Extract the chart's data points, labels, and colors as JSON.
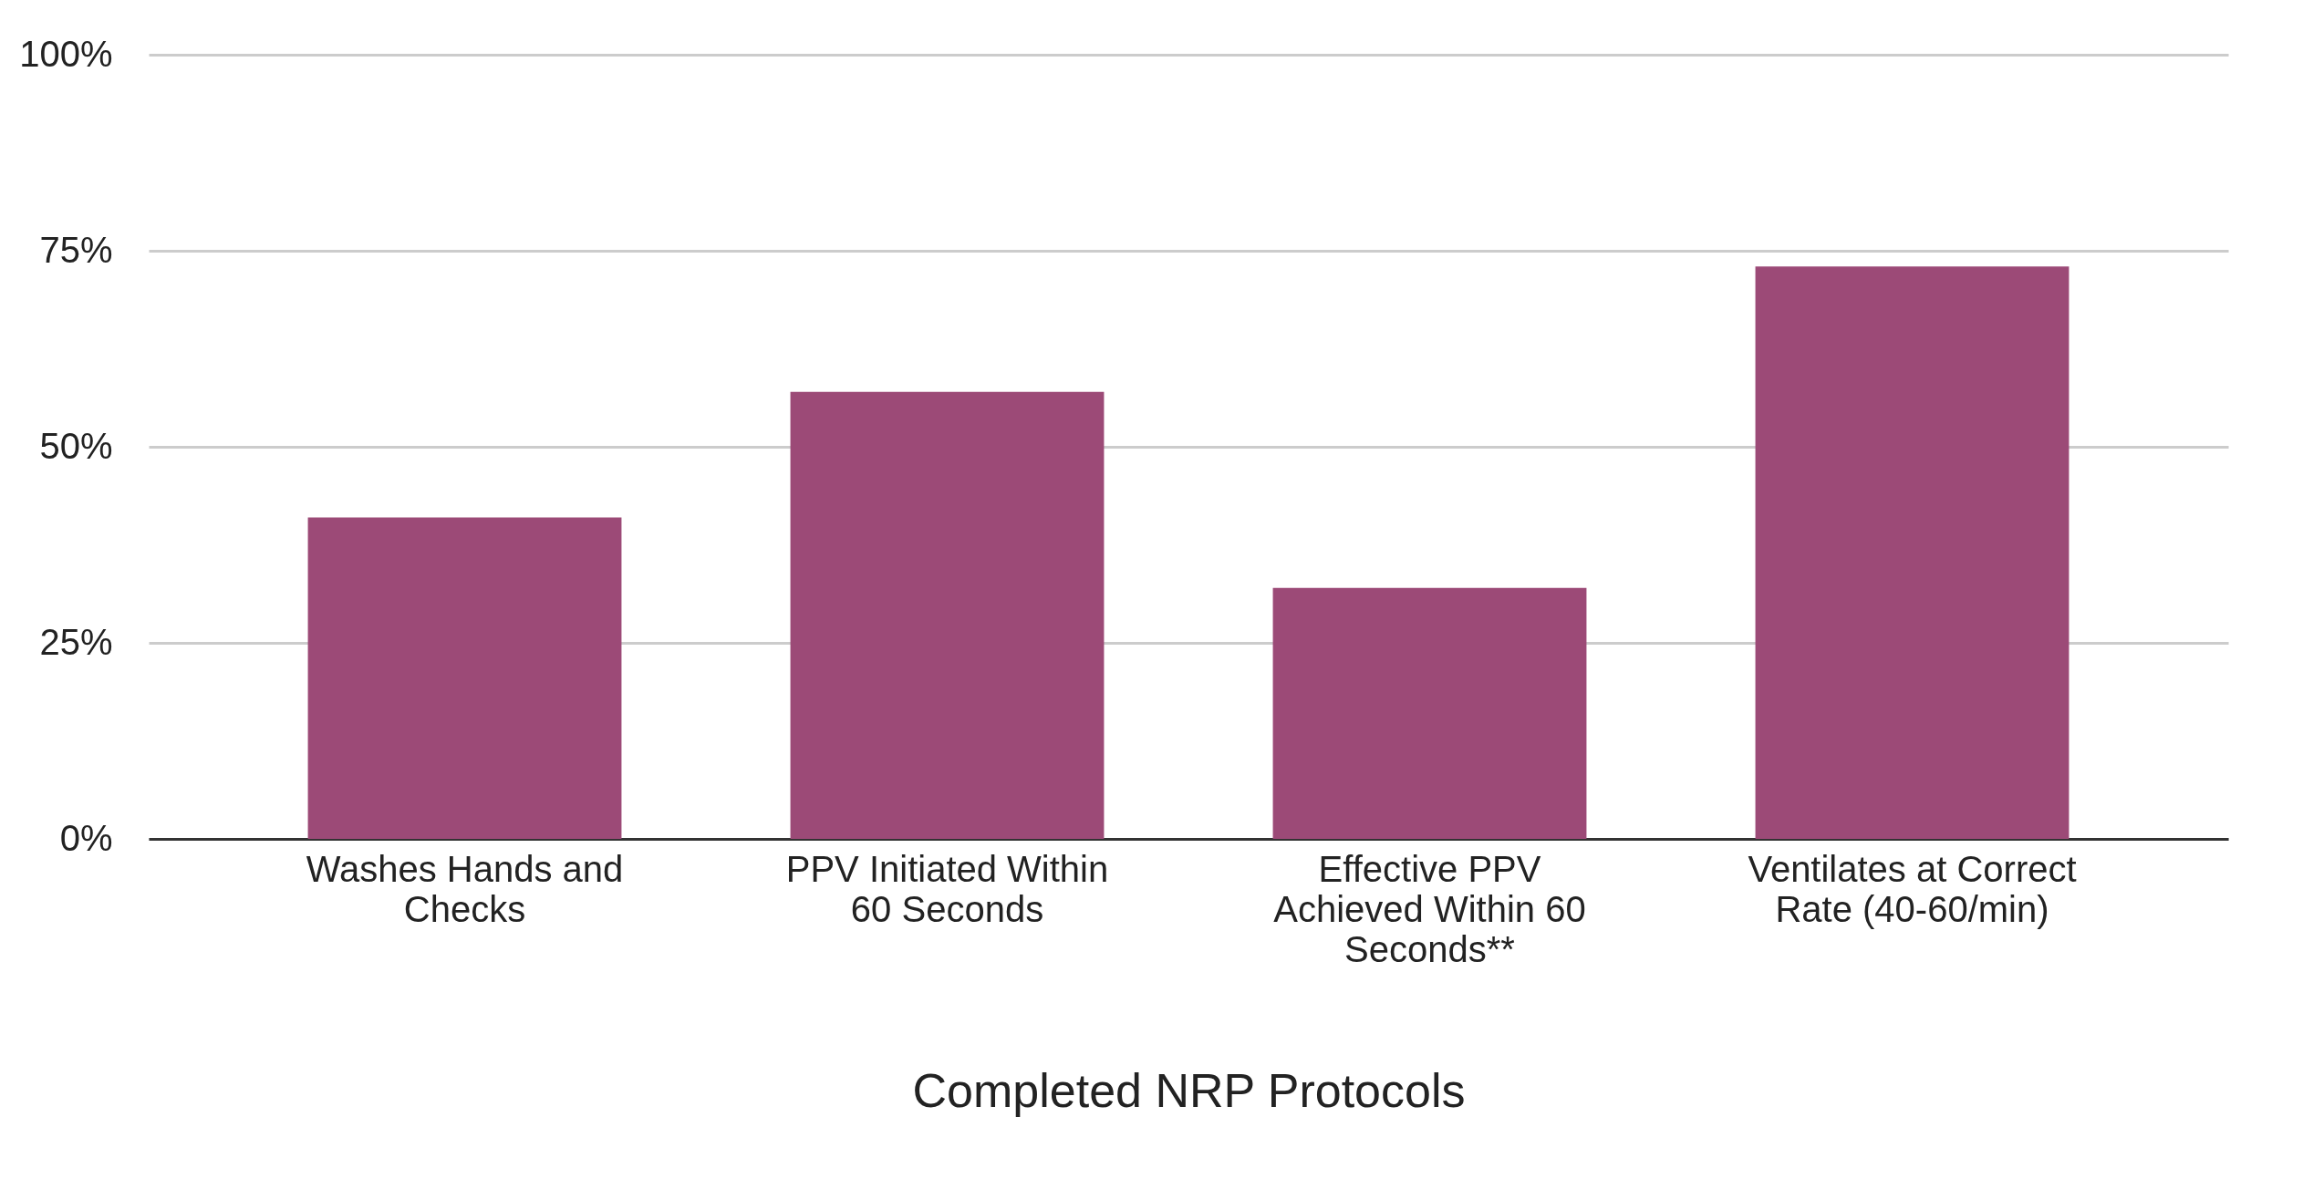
{
  "chart_data": {
    "type": "bar",
    "xlabel": "Completed NRP Protocols",
    "categories": [
      "Washes Hands and\nChecks",
      "PPV Initiated Within\n60 Seconds",
      "Effective PPV\nAchieved Within 60\nSeconds**",
      "Ventilates at Correct\nRate (40-60/min)"
    ],
    "values": [
      41,
      57,
      32,
      73
    ],
    "color": "#9c4a77",
    "ylim": [
      0,
      100
    ],
    "yticks": [
      {
        "value": 0,
        "label": "0%"
      },
      {
        "value": 25,
        "label": "25%"
      },
      {
        "value": 50,
        "label": "50%"
      },
      {
        "value": 75,
        "label": "75%"
      },
      {
        "value": 100,
        "label": "100%"
      }
    ],
    "grid": "y"
  }
}
